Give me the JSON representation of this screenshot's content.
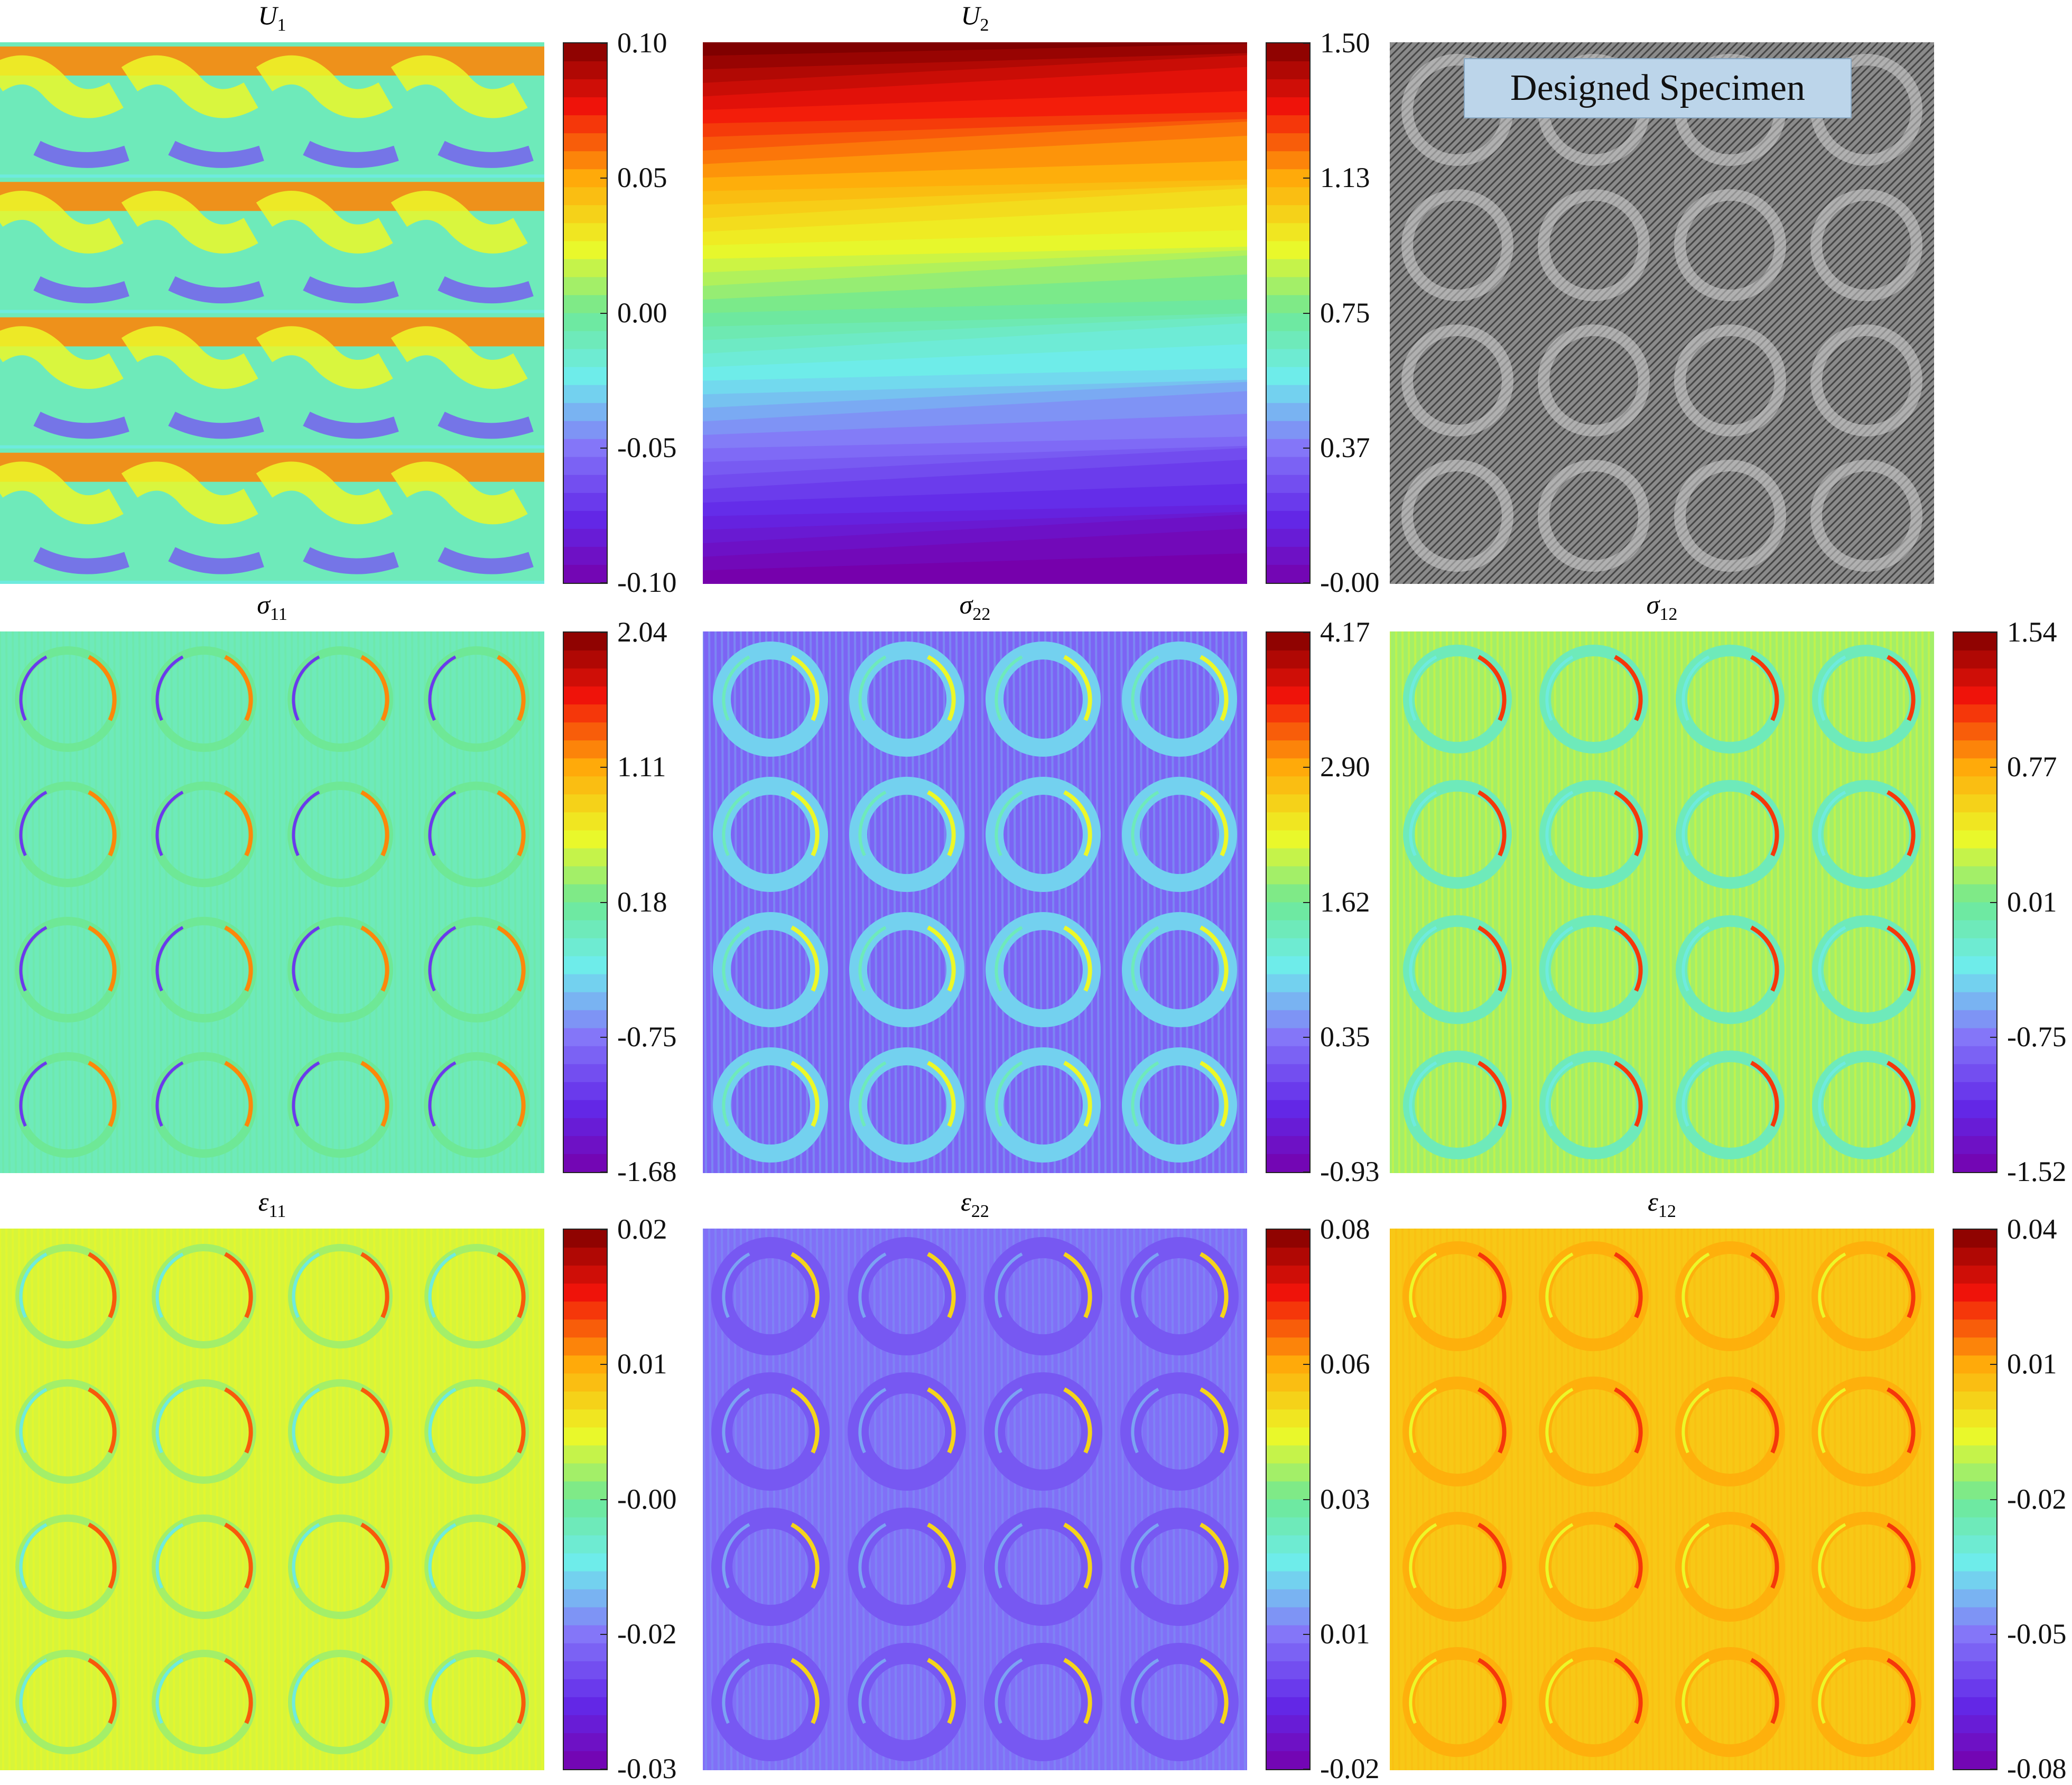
{
  "figure": {
    "panels": [
      {
        "id": "U1",
        "symbol": "U",
        "sub": "1",
        "colorbar": true,
        "ticks": [
          "0.10",
          "0.05",
          "0.00",
          "-0.05",
          "-0.10"
        ],
        "pattern": "bands"
      },
      {
        "id": "U2",
        "symbol": "U",
        "sub": "2",
        "colorbar": true,
        "ticks": [
          "1.50",
          "1.13",
          "0.75",
          "0.37",
          "-0.00"
        ],
        "pattern": "gradient"
      },
      {
        "id": "specimen",
        "symbol": "",
        "sub": "",
        "colorbar": false,
        "label": "Designed Specimen",
        "pattern": "specimen"
      },
      {
        "id": "sigma11",
        "symbol": "σ",
        "sub": "11",
        "colorbar": true,
        "ticks": [
          "2.04",
          "1.11",
          "0.18",
          "-0.75",
          "-1.68"
        ],
        "pattern": "rings_s11"
      },
      {
        "id": "sigma22",
        "symbol": "σ",
        "sub": "22",
        "colorbar": true,
        "ticks": [
          "4.17",
          "2.90",
          "1.62",
          "0.35",
          "-0.93"
        ],
        "pattern": "rings_s22"
      },
      {
        "id": "sigma12",
        "symbol": "σ",
        "sub": "12",
        "colorbar": true,
        "ticks": [
          "1.54",
          "0.77",
          "0.01",
          "-0.75",
          "-1.52"
        ],
        "pattern": "rings_s12"
      },
      {
        "id": "eps11",
        "symbol": "ε",
        "sub": "11",
        "colorbar": true,
        "ticks": [
          "0.02",
          "0.01",
          "-0.00",
          "-0.02",
          "-0.03"
        ],
        "pattern": "rings_e11"
      },
      {
        "id": "eps22",
        "symbol": "ε",
        "sub": "22",
        "colorbar": true,
        "ticks": [
          "0.08",
          "0.06",
          "0.03",
          "0.01",
          "-0.02"
        ],
        "pattern": "rings_e22"
      },
      {
        "id": "eps12",
        "symbol": "ε",
        "sub": "12",
        "colorbar": true,
        "ticks": [
          "0.04",
          "0.01",
          "-0.02",
          "-0.05",
          "-0.08"
        ],
        "pattern": "rings_e12"
      }
    ]
  },
  "chart_data": [
    {
      "type": "heatmap",
      "title": "U_1",
      "colorbar_range": [
        -0.1,
        0.1
      ],
      "colorbar_ticks": [
        0.1,
        0.05,
        0.0,
        -0.05,
        -0.1
      ],
      "colormap": "rainbow"
    },
    {
      "type": "heatmap",
      "title": "U_2",
      "colorbar_range": [
        -0.0,
        1.5
      ],
      "colorbar_ticks": [
        1.5,
        1.13,
        0.75,
        0.37,
        -0.0
      ],
      "colormap": "rainbow"
    },
    {
      "type": "heatmap",
      "title": "Designed Specimen",
      "colormap": "gray"
    },
    {
      "type": "heatmap",
      "title": "σ_11",
      "colorbar_range": [
        -1.68,
        2.04
      ],
      "colorbar_ticks": [
        2.04,
        1.11,
        0.18,
        -0.75,
        -1.68
      ],
      "colormap": "rainbow"
    },
    {
      "type": "heatmap",
      "title": "σ_22",
      "colorbar_range": [
        -0.93,
        4.17
      ],
      "colorbar_ticks": [
        4.17,
        2.9,
        1.62,
        0.35,
        -0.93
      ],
      "colormap": "rainbow"
    },
    {
      "type": "heatmap",
      "title": "σ_12",
      "colorbar_range": [
        -1.52,
        1.54
      ],
      "colorbar_ticks": [
        1.54,
        0.77,
        0.01,
        -0.75,
        -1.52
      ],
      "colormap": "rainbow"
    },
    {
      "type": "heatmap",
      "title": "ε_11",
      "colorbar_range": [
        -0.03,
        0.02
      ],
      "colorbar_ticks": [
        0.02,
        0.01,
        -0.0,
        -0.02,
        -0.03
      ],
      "colormap": "rainbow"
    },
    {
      "type": "heatmap",
      "title": "ε_22",
      "colorbar_range": [
        -0.02,
        0.08
      ],
      "colorbar_ticks": [
        0.08,
        0.06,
        0.03,
        0.01,
        -0.02
      ],
      "colormap": "rainbow"
    },
    {
      "type": "heatmap",
      "title": "ε_12",
      "colorbar_range": [
        -0.08,
        0.04
      ],
      "colorbar_ticks": [
        0.04,
        0.01,
        -0.02,
        -0.05,
        -0.08
      ],
      "colormap": "rainbow"
    }
  ]
}
